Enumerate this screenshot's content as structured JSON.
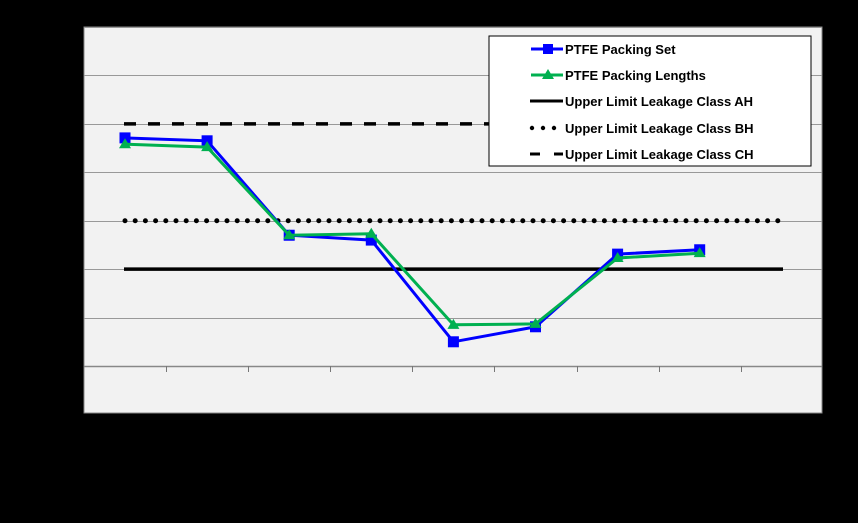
{
  "chart_data": {
    "type": "line",
    "title": "",
    "xlabel": "",
    "ylabel": "",
    "background": "#000000",
    "plot_background": "#f2f2f2",
    "grid": true,
    "legend_position": "top-right (inside plot)",
    "x": [
      1,
      2,
      3,
      4,
      5,
      6,
      7,
      8
    ],
    "ylim": [
      0,
      7
    ],
    "y_gridlines": [
      0,
      1,
      2,
      3,
      4,
      5,
      6,
      7
    ],
    "note": "Axis tick labels are rendered black on black and are not visible; values are in gridline units read from pixel positions.",
    "series": [
      {
        "name": "PTFE Packing Set",
        "color": "#0000ff",
        "marker": "square",
        "style": "solid",
        "values": [
          4.71,
          4.65,
          2.7,
          2.6,
          0.5,
          0.81,
          2.31,
          2.4
        ]
      },
      {
        "name": "PTFE Packing Lengths",
        "color": "#00b050",
        "marker": "triangle",
        "style": "solid",
        "values": [
          4.58,
          4.52,
          2.7,
          2.73,
          0.85,
          0.87,
          2.23,
          2.33
        ]
      },
      {
        "name": "Upper Limit Leakage Class AH",
        "color": "#000000",
        "marker": "none",
        "style": "solid",
        "value": 2.0
      },
      {
        "name": "Upper Limit Leakage Class BH",
        "color": "#000000",
        "marker": "none",
        "style": "dotted",
        "value": 3.0
      },
      {
        "name": "Upper Limit Leakage Class CH",
        "color": "#000000",
        "marker": "none",
        "style": "dashed",
        "value": 5.0
      }
    ]
  },
  "legend": {
    "items": [
      {
        "label": "PTFE Packing Set"
      },
      {
        "label": "PTFE Packing Lengths"
      },
      {
        "label": "Upper Limit Leakage Class AH"
      },
      {
        "label": "Upper Limit Leakage Class BH"
      },
      {
        "label": "Upper Limit Leakage Class CH"
      }
    ]
  }
}
